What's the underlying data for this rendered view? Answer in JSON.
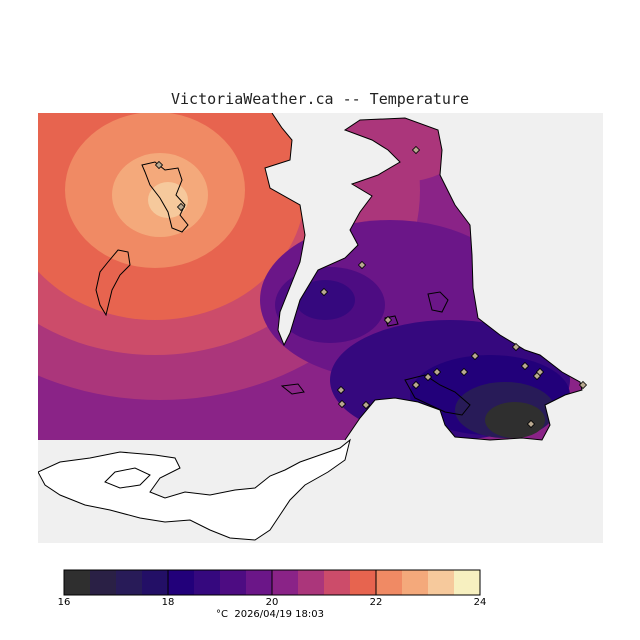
{
  "title": "VictoriaWeather.ca -- Temperature",
  "colorbar": {
    "min": 16,
    "max": 24,
    "step": 0.5,
    "tick_labels": [
      "16",
      "18",
      "20",
      "22",
      "24"
    ],
    "colors": [
      "#2f2f2f",
      "#2a2045",
      "#281b58",
      "#230f66",
      "#22007a",
      "#35087e",
      "#4d0c82",
      "#6b1688",
      "#8a2387",
      "#ab367b",
      "#cc4c6a",
      "#e7644f",
      "#f08a64",
      "#f4a97b",
      "#f6c99c",
      "#f7f0c0"
    ]
  },
  "footer": {
    "unit": "°C",
    "timestamp": "2026/04/19 18:03"
  },
  "colors": {
    "no_data": "#f0f0f0",
    "land": "#ffffff",
    "coast": "#000000"
  },
  "stations": {
    "count": 20,
    "marker": "diamond-icon"
  }
}
